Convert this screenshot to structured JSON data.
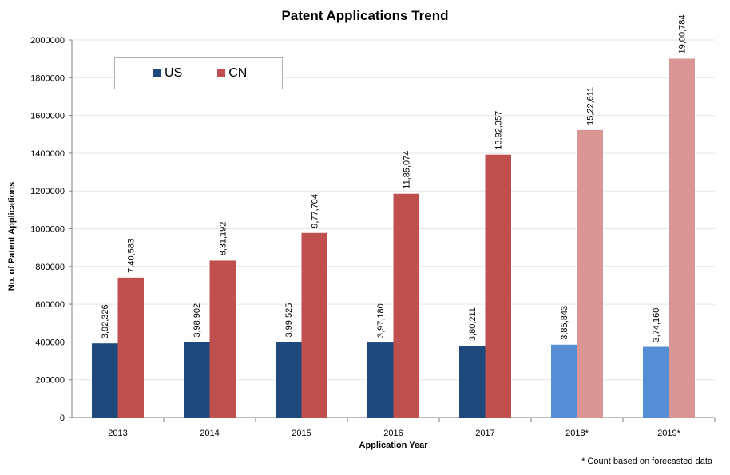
{
  "chart_data": {
    "type": "bar",
    "title": "Patent Applications Trend",
    "xlabel": "Application Year",
    "ylabel": "No. of Patent Applications",
    "categories": [
      "2013",
      "2014",
      "2015",
      "2016",
      "2017",
      "2018*",
      "2019*"
    ],
    "ylim": [
      0,
      2000000
    ],
    "yticks": [
      "0",
      "200000",
      "400000",
      "600000",
      "800000",
      "1000000",
      "1200000",
      "1400000",
      "1600000",
      "1800000",
      "2000000"
    ],
    "grid": true,
    "legend_position": "top-left",
    "series": [
      {
        "name": "US",
        "color": "#1F497D",
        "forecast_color": "#558ED5",
        "values": [
          392326,
          398902,
          399525,
          397180,
          380211,
          385843,
          374160
        ],
        "labels": [
          "3,92,326",
          "3,98,902",
          "3,99,525",
          "3,97,180",
          "3,80,211",
          "3,85,843",
          "3,74,160"
        ]
      },
      {
        "name": "CN",
        "color": "#C0504D",
        "forecast_color": "#D99694",
        "values": [
          740583,
          831192,
          977704,
          1185074,
          1392357,
          1522611,
          1900784
        ],
        "labels": [
          "7,40,583",
          "8,31,192",
          "9,77,704",
          "11,85,074",
          "13,92,357",
          "15,22,611",
          "19,00,784"
        ]
      }
    ],
    "forecast_categories": [
      "2018*",
      "2019*"
    ],
    "footnote": "* Count based on forecasted data"
  }
}
